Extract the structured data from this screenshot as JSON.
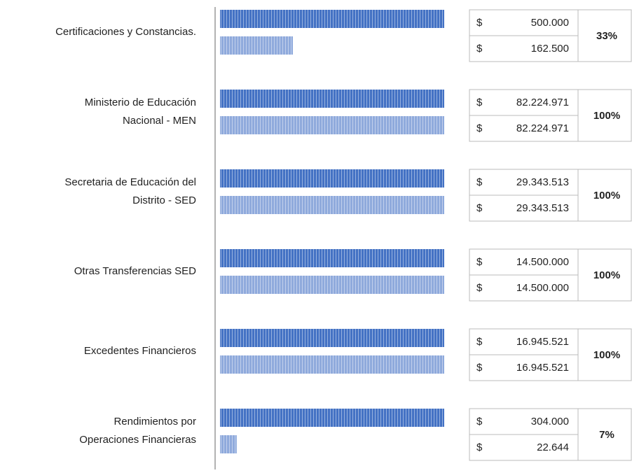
{
  "chart_data": {
    "type": "bar",
    "categories": [
      [
        "Certificaciones y Constancias."
      ],
      [
        "Ministerio de Educación",
        "Nacional - MEN"
      ],
      [
        "Secretaria de Educación del",
        "Distrito - SED"
      ],
      [
        "Otras Transferencias SED"
      ],
      [
        "Excedentes Financieros"
      ],
      [
        "Rendimientos por",
        "Operaciones Financieras"
      ]
    ],
    "series": [
      {
        "color": "#4472c4",
        "values": [
          500000,
          82224971,
          29343513,
          14500000,
          16945521,
          304000
        ],
        "value_labels": [
          "500.000",
          "82.224.971",
          "29.343.513",
          "14.500.000",
          "16.945.521",
          "304.000"
        ]
      },
      {
        "color": "#8faadc",
        "values": [
          162500,
          82224971,
          29343513,
          14500000,
          16945521,
          22644
        ],
        "value_labels": [
          "162.500",
          "82.224.971",
          "29.343.513",
          "14.500.000",
          "16.945.521",
          "22.644"
        ]
      }
    ],
    "currency_symbol": "$",
    "ratio": {
      "values": [
        33,
        100,
        100,
        100,
        100,
        7
      ],
      "value_labels": [
        "33%",
        "100%",
        "100%",
        "100%",
        "100%",
        "7%"
      ]
    }
  }
}
